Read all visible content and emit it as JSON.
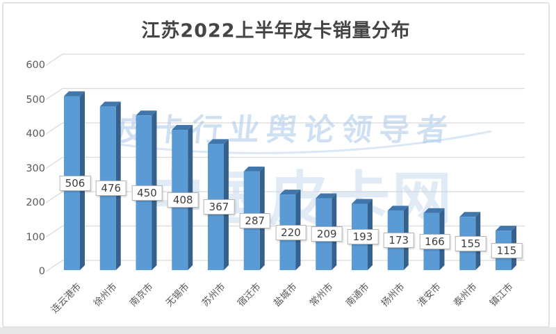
{
  "page": {
    "title": "江苏2022上半年皮卡销量分布"
  },
  "watermarks": {
    "slogan": "皮卡行业舆论领导者",
    "site": "中国皮卡网"
  },
  "chart_data": {
    "type": "bar",
    "style": "3d-column",
    "title": "江苏2022上半年皮卡销量分布",
    "categories": [
      "连云港市",
      "徐州市",
      "南京市",
      "无锡市",
      "苏州市",
      "宿迁市",
      "盐城市",
      "常州市",
      "南通市",
      "扬州市",
      "淮安市",
      "泰州市",
      "镇江市"
    ],
    "values": [
      506,
      476,
      450,
      408,
      367,
      287,
      220,
      209,
      193,
      173,
      166,
      155,
      115
    ],
    "yticks": [
      0,
      100,
      200,
      300,
      400,
      500,
      600
    ],
    "ylim": [
      0,
      600
    ],
    "xlabel": "",
    "ylabel": "",
    "grid": true,
    "legend": "none",
    "data_labels_shown": true,
    "colors": {
      "bar_front": "#5b9bd5",
      "bar_side": "#36618c",
      "bar_top": "#4076ac",
      "gridline": "#d9d9d9",
      "axis_text": "#595959",
      "title_text": "#454545",
      "watermark_blue": "#bcd4ee",
      "label_box_border": "#b4b4b4",
      "label_text": "#3d3d3d",
      "card_border": "#e2e2e2",
      "bottom_strip": "#e7e7e7"
    }
  }
}
